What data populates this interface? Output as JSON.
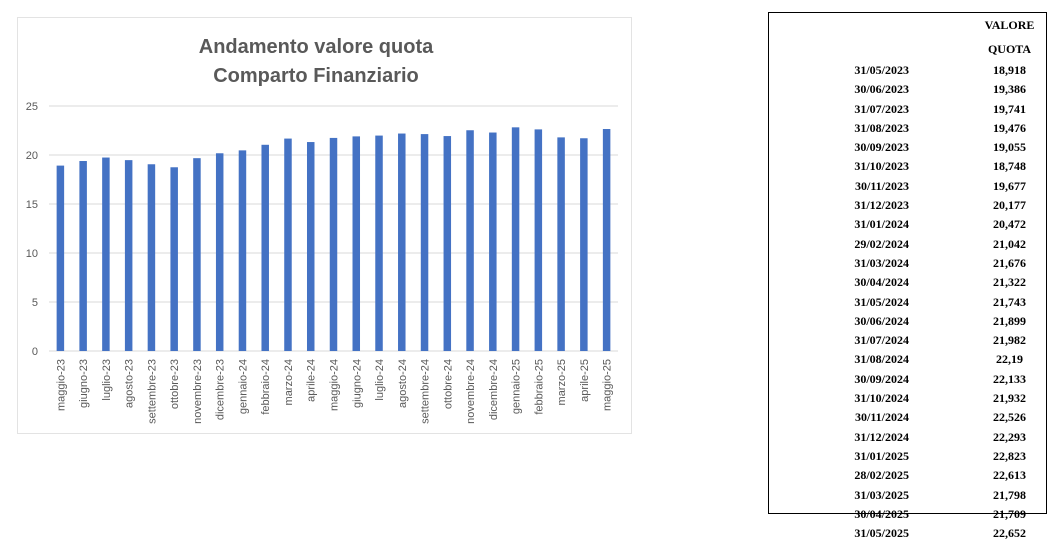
{
  "chart_data": {
    "type": "bar",
    "title_lines": [
      "Andamento valore quota",
      "Comparto Finanziario"
    ],
    "categories": [
      "maggio-23",
      "giugno-23",
      "luglio-23",
      "agosto-23",
      "settembre-23",
      "ottobre-23",
      "novembre-23",
      "dicembre-23",
      "gennaio-24",
      "febbraio-24",
      "marzo-24",
      "aprile-24",
      "maggio-24",
      "giugno-24",
      "luglio-24",
      "agosto-24",
      "settembre-24",
      "ottobre-24",
      "novembre-24",
      "dicembre-24",
      "gennaio-25",
      "febbraio-25",
      "marzo-25",
      "aprile-25",
      "maggio-25"
    ],
    "values": [
      18.918,
      19.386,
      19.741,
      19.476,
      19.055,
      18.748,
      19.677,
      20.177,
      20.472,
      21.042,
      21.676,
      21.322,
      21.743,
      21.899,
      21.982,
      22.19,
      22.133,
      21.932,
      22.526,
      22.293,
      22.823,
      22.613,
      21.798,
      21.709,
      22.652
    ],
    "yticks": [
      "0",
      "5",
      "10",
      "15",
      "20",
      "25"
    ],
    "ylim": [
      0,
      25
    ],
    "grid": true,
    "colors": {
      "bar": "#4472c4",
      "grid": "#d9d9d9"
    }
  },
  "table": {
    "header": {
      "date": "",
      "value": "VALORE QUOTA"
    },
    "rows": [
      {
        "date": "31/05/2023",
        "value": "18,918"
      },
      {
        "date": "30/06/2023",
        "value": "19,386"
      },
      {
        "date": "31/07/2023",
        "value": "19,741"
      },
      {
        "date": "31/08/2023",
        "value": "19,476"
      },
      {
        "date": "30/09/2023",
        "value": "19,055"
      },
      {
        "date": "31/10/2023",
        "value": "18,748"
      },
      {
        "date": "30/11/2023",
        "value": "19,677"
      },
      {
        "date": "31/12/2023",
        "value": "20,177"
      },
      {
        "date": "31/01/2024",
        "value": "20,472"
      },
      {
        "date": "29/02/2024",
        "value": "21,042"
      },
      {
        "date": "31/03/2024",
        "value": "21,676"
      },
      {
        "date": "30/04/2024",
        "value": "21,322"
      },
      {
        "date": "31/05/2024",
        "value": "21,743"
      },
      {
        "date": "30/06/2024",
        "value": "21,899"
      },
      {
        "date": "31/07/2024",
        "value": "21,982"
      },
      {
        "date": "31/08/2024",
        "value": "22,19"
      },
      {
        "date": "30/09/2024",
        "value": "22,133"
      },
      {
        "date": "31/10/2024",
        "value": "21,932"
      },
      {
        "date": "30/11/2024",
        "value": "22,526"
      },
      {
        "date": "31/12/2024",
        "value": "22,293"
      },
      {
        "date": "31/01/2025",
        "value": "22,823"
      },
      {
        "date": "28/02/2025",
        "value": "22,613"
      },
      {
        "date": "31/03/2025",
        "value": "21,798"
      },
      {
        "date": "30/04/2025",
        "value": "21,709"
      },
      {
        "date": "31/05/2025",
        "value": "22,652"
      }
    ]
  }
}
